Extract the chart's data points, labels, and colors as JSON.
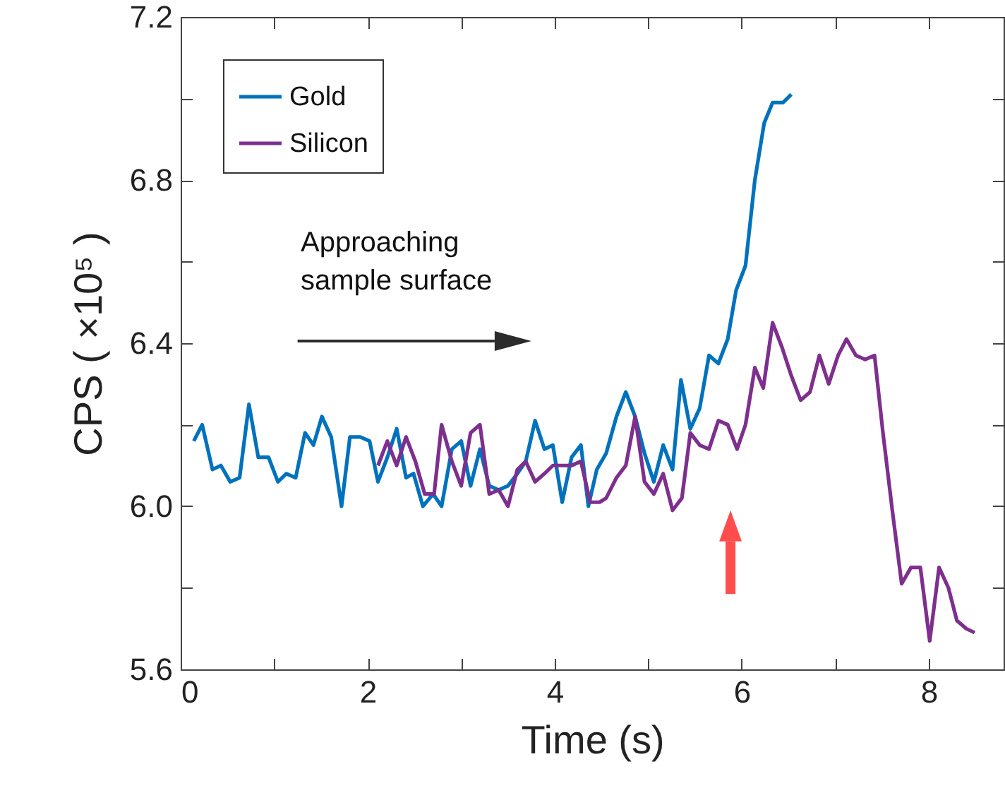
{
  "chart_data": {
    "type": "line",
    "xlabel": "Time (s)",
    "ylabel": "CPS ( ×10⁵ )",
    "xlim": [
      0,
      8.8
    ],
    "ylim": [
      5.6,
      7.2
    ],
    "xticks": [
      0,
      {
        "value": 1,
        "label": null
      },
      2,
      {
        "value": 3,
        "label": null
      },
      4,
      {
        "value": 5,
        "label": null
      },
      6,
      {
        "value": 7,
        "label": null
      },
      8
    ],
    "yticks": [
      5.6,
      {
        "value": 5.8,
        "label": null
      },
      {
        "value": 6.0,
        "label": "6.0"
      },
      {
        "value": 6.2,
        "label": null
      },
      6.4,
      {
        "value": 6.6,
        "label": null
      },
      6.8,
      {
        "value": 7.0,
        "label": null
      },
      7.2
    ],
    "legend": "top left",
    "grid": false,
    "marker": "none",
    "line_style": "solid",
    "annotations": [
      "Approaching sample surface"
    ],
    "series": [
      {
        "name": "Gold",
        "color": "#0072bd",
        "x": [
          0.14,
          0.23,
          0.34,
          0.43,
          0.53,
          0.63,
          0.73,
          0.83,
          0.94,
          1.04,
          1.13,
          1.23,
          1.33,
          1.42,
          1.51,
          1.61,
          1.72,
          1.81,
          1.92,
          2.02,
          2.11,
          2.21,
          2.31,
          2.41,
          2.49,
          2.59,
          2.7,
          2.79,
          2.9,
          3.0,
          3.1,
          3.2,
          3.3,
          3.4,
          3.5,
          3.6,
          3.69,
          3.79,
          3.89,
          3.98,
          4.08,
          4.18,
          4.28,
          4.36,
          4.45,
          4.55,
          4.66,
          4.76,
          4.86,
          4.96,
          5.06,
          5.16,
          5.26,
          5.35,
          5.45,
          5.55,
          5.65,
          5.75,
          5.85,
          5.94,
          6.04,
          6.14,
          6.24,
          6.33,
          6.44,
          6.53
        ],
        "values": [
          6.16,
          6.2,
          6.09,
          6.1,
          6.06,
          6.07,
          6.25,
          6.12,
          6.12,
          6.06,
          6.08,
          6.07,
          6.18,
          6.15,
          6.22,
          6.17,
          6.0,
          6.17,
          6.17,
          6.16,
          6.06,
          6.12,
          6.19,
          6.07,
          6.08,
          6.0,
          6.03,
          6.0,
          6.14,
          6.16,
          6.05,
          6.14,
          6.05,
          6.04,
          6.05,
          6.08,
          6.11,
          6.21,
          6.14,
          6.15,
          6.01,
          6.12,
          6.15,
          6.0,
          6.09,
          6.13,
          6.22,
          6.28,
          6.22,
          6.13,
          6.06,
          6.15,
          6.09,
          6.31,
          6.19,
          6.24,
          6.37,
          6.35,
          6.41,
          6.53,
          6.59,
          6.8,
          6.94,
          6.99,
          6.99,
          7.01
        ]
      },
      {
        "name": "Silicon",
        "color": "#7e2f8e",
        "x": [
          2.11,
          2.21,
          2.31,
          2.41,
          2.51,
          2.61,
          2.71,
          2.79,
          2.9,
          3.0,
          3.1,
          3.2,
          3.3,
          3.4,
          3.5,
          3.6,
          3.69,
          3.79,
          3.89,
          3.98,
          4.08,
          4.18,
          4.28,
          4.38,
          4.48,
          4.55,
          4.66,
          4.76,
          4.86,
          4.96,
          5.06,
          5.16,
          5.26,
          5.36,
          5.45,
          5.55,
          5.65,
          5.75,
          5.85,
          5.95,
          6.04,
          6.14,
          6.23,
          6.33,
          6.43,
          6.53,
          6.63,
          6.73,
          6.83,
          6.93,
          7.03,
          7.12,
          7.22,
          7.32,
          7.42,
          7.51,
          7.61,
          7.71,
          7.81,
          7.91,
          8.01,
          8.11,
          8.21,
          8.3,
          8.4,
          8.49
        ],
        "values": [
          6.1,
          6.16,
          6.1,
          6.17,
          6.11,
          6.03,
          6.03,
          6.2,
          6.11,
          6.05,
          6.18,
          6.2,
          6.03,
          6.04,
          6.0,
          6.09,
          6.11,
          6.06,
          6.08,
          6.1,
          6.1,
          6.1,
          6.11,
          6.01,
          6.01,
          6.02,
          6.07,
          6.1,
          6.22,
          6.06,
          6.03,
          6.08,
          5.99,
          6.02,
          6.18,
          6.15,
          6.14,
          6.21,
          6.2,
          6.14,
          6.2,
          6.34,
          6.29,
          6.45,
          6.39,
          6.32,
          6.26,
          6.28,
          6.37,
          6.3,
          6.37,
          6.41,
          6.37,
          6.36,
          6.37,
          6.18,
          5.99,
          5.81,
          5.85,
          5.85,
          5.67,
          5.85,
          5.8,
          5.72,
          5.7,
          5.69
        ]
      }
    ]
  }
}
